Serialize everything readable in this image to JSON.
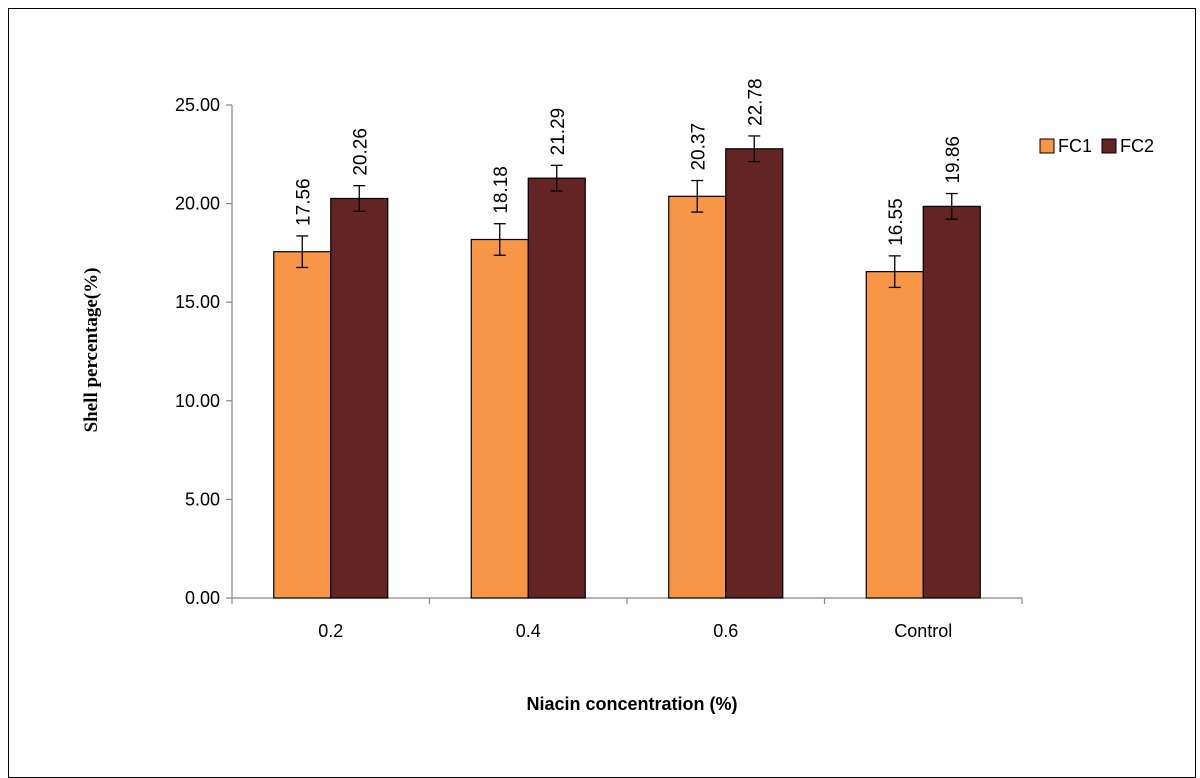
{
  "chart_data": {
    "type": "bar",
    "title": "",
    "xlabel": "Niacin  concentration (%)",
    "ylabel": "Shell percentage(%)",
    "categories": [
      "0.2",
      "0.4",
      "0.6",
      "Control"
    ],
    "ylim": [
      0,
      25
    ],
    "yticks": [
      "0.00",
      "5.00",
      "10.00",
      "15.00",
      "20.00",
      "25.00"
    ],
    "grid": false,
    "legend_position": "top-right",
    "series": [
      {
        "name": "FC1",
        "color": "#f79646",
        "values": [
          17.56,
          18.18,
          20.37,
          16.55
        ],
        "error": [
          0.8,
          0.8,
          0.8,
          0.8
        ],
        "labels": [
          "17.56",
          "18.18",
          "20.37",
          "16.55"
        ]
      },
      {
        "name": "FC2",
        "color": "#632523",
        "values": [
          20.26,
          21.29,
          22.78,
          19.86
        ],
        "error": [
          0.65,
          0.65,
          0.65,
          0.65
        ],
        "labels": [
          "20.26",
          "21.29",
          "22.78",
          "19.86"
        ]
      }
    ]
  }
}
